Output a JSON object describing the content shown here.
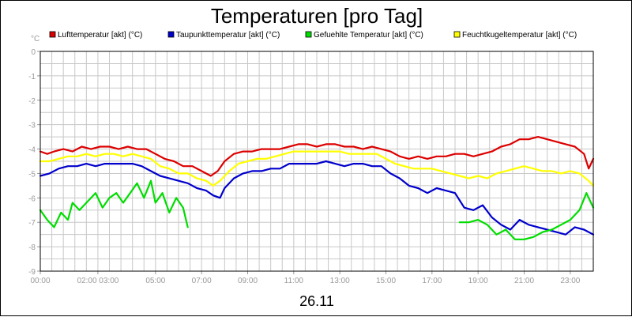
{
  "chart_data": {
    "type": "line",
    "title": "Temperaturen [pro Tag]",
    "ylabel": "°C",
    "date_label": "26.11",
    "xlim": [
      0,
      24
    ],
    "ylim": [
      -9,
      0
    ],
    "yticks": [
      "0",
      "-1",
      "-2",
      "-3",
      "-4",
      "-5",
      "-6",
      "-7",
      "-8",
      "-9"
    ],
    "xticks": [
      {
        "x": 0,
        "label": "00:00"
      },
      {
        "x": 2.5,
        "label": "02:00 03:00"
      },
      {
        "x": 5,
        "label": "05:00"
      },
      {
        "x": 7,
        "label": "07:00"
      },
      {
        "x": 9,
        "label": "09:00"
      },
      {
        "x": 11,
        "label": "11:00"
      },
      {
        "x": 13,
        "label": "13:00"
      },
      {
        "x": 15,
        "label": "15:00"
      },
      {
        "x": 17,
        "label": "17:00"
      },
      {
        "x": 19,
        "label": "19:00"
      },
      {
        "x": 21,
        "label": "21:00"
      },
      {
        "x": 23,
        "label": "23:00"
      }
    ],
    "grid": true,
    "legend_position": "top",
    "series": [
      {
        "name": "Lufttemperatur [akt] (°C)",
        "color": "#dd0000",
        "segments": [
          [
            [
              0,
              -4.1
            ],
            [
              0.3,
              -4.2
            ],
            [
              0.6,
              -4.1
            ],
            [
              1,
              -4.0
            ],
            [
              1.4,
              -4.1
            ],
            [
              1.8,
              -3.9
            ],
            [
              2.2,
              -4.0
            ],
            [
              2.6,
              -3.9
            ],
            [
              3,
              -3.9
            ],
            [
              3.4,
              -4.0
            ],
            [
              3.8,
              -3.9
            ],
            [
              4.2,
              -4.0
            ],
            [
              4.6,
              -4.0
            ],
            [
              5,
              -4.2
            ],
            [
              5.4,
              -4.4
            ],
            [
              5.8,
              -4.5
            ],
            [
              6.2,
              -4.7
            ],
            [
              6.6,
              -4.7
            ],
            [
              7,
              -4.9
            ],
            [
              7.4,
              -5.1
            ],
            [
              7.7,
              -4.9
            ],
            [
              8,
              -4.5
            ],
            [
              8.4,
              -4.2
            ],
            [
              8.8,
              -4.1
            ],
            [
              9.2,
              -4.1
            ],
            [
              9.6,
              -4.0
            ],
            [
              10,
              -4.0
            ],
            [
              10.4,
              -4.0
            ],
            [
              10.8,
              -3.9
            ],
            [
              11.2,
              -3.8
            ],
            [
              11.6,
              -3.8
            ],
            [
              12,
              -3.9
            ],
            [
              12.4,
              -3.8
            ],
            [
              12.8,
              -3.8
            ],
            [
              13.2,
              -3.9
            ],
            [
              13.6,
              -3.9
            ],
            [
              14,
              -4.0
            ],
            [
              14.4,
              -3.9
            ],
            [
              14.8,
              -4.0
            ],
            [
              15.2,
              -4.1
            ],
            [
              15.6,
              -4.3
            ],
            [
              16,
              -4.4
            ],
            [
              16.4,
              -4.3
            ],
            [
              16.8,
              -4.4
            ],
            [
              17.2,
              -4.3
            ],
            [
              17.6,
              -4.3
            ],
            [
              18,
              -4.2
            ],
            [
              18.4,
              -4.2
            ],
            [
              18.8,
              -4.3
            ],
            [
              19.2,
              -4.2
            ],
            [
              19.6,
              -4.1
            ],
            [
              20,
              -3.9
            ],
            [
              20.4,
              -3.8
            ],
            [
              20.8,
              -3.6
            ],
            [
              21.2,
              -3.6
            ],
            [
              21.6,
              -3.5
            ],
            [
              22,
              -3.6
            ],
            [
              22.4,
              -3.7
            ],
            [
              22.8,
              -3.8
            ],
            [
              23.2,
              -3.9
            ],
            [
              23.6,
              -4.2
            ],
            [
              23.8,
              -4.8
            ],
            [
              24,
              -4.4
            ]
          ]
        ]
      },
      {
        "name": "Taupunkttemperatur [akt] (°C)",
        "color": "#0000cc",
        "segments": [
          [
            [
              0,
              -5.1
            ],
            [
              0.4,
              -5.0
            ],
            [
              0.8,
              -4.8
            ],
            [
              1.2,
              -4.7
            ],
            [
              1.6,
              -4.7
            ],
            [
              2,
              -4.6
            ],
            [
              2.4,
              -4.7
            ],
            [
              2.8,
              -4.6
            ],
            [
              3.2,
              -4.6
            ],
            [
              3.6,
              -4.6
            ],
            [
              4,
              -4.6
            ],
            [
              4.4,
              -4.7
            ],
            [
              4.8,
              -4.9
            ],
            [
              5.2,
              -5.1
            ],
            [
              5.6,
              -5.2
            ],
            [
              6,
              -5.3
            ],
            [
              6.4,
              -5.4
            ],
            [
              6.8,
              -5.6
            ],
            [
              7.2,
              -5.7
            ],
            [
              7.5,
              -5.9
            ],
            [
              7.8,
              -6.0
            ],
            [
              8,
              -5.6
            ],
            [
              8.4,
              -5.2
            ],
            [
              8.8,
              -5.0
            ],
            [
              9.2,
              -4.9
            ],
            [
              9.6,
              -4.9
            ],
            [
              10,
              -4.8
            ],
            [
              10.4,
              -4.8
            ],
            [
              10.8,
              -4.6
            ],
            [
              11.2,
              -4.6
            ],
            [
              11.6,
              -4.6
            ],
            [
              12,
              -4.6
            ],
            [
              12.4,
              -4.5
            ],
            [
              12.8,
              -4.6
            ],
            [
              13.2,
              -4.7
            ],
            [
              13.6,
              -4.6
            ],
            [
              14,
              -4.6
            ],
            [
              14.4,
              -4.7
            ],
            [
              14.8,
              -4.7
            ],
            [
              15.2,
              -5.0
            ],
            [
              15.6,
              -5.2
            ],
            [
              16,
              -5.5
            ],
            [
              16.4,
              -5.6
            ],
            [
              16.8,
              -5.8
            ],
            [
              17.2,
              -5.6
            ],
            [
              17.6,
              -5.7
            ],
            [
              18,
              -5.8
            ],
            [
              18.4,
              -6.4
            ],
            [
              18.8,
              -6.5
            ],
            [
              19.2,
              -6.3
            ],
            [
              19.6,
              -6.8
            ],
            [
              20,
              -7.1
            ],
            [
              20.4,
              -7.3
            ],
            [
              20.8,
              -6.9
            ],
            [
              21.2,
              -7.1
            ],
            [
              21.6,
              -7.2
            ],
            [
              22,
              -7.3
            ],
            [
              22.4,
              -7.4
            ],
            [
              22.8,
              -7.5
            ],
            [
              23.2,
              -7.2
            ],
            [
              23.6,
              -7.3
            ],
            [
              24,
              -7.5
            ]
          ]
        ]
      },
      {
        "name": "Gefuehlte Temperatur [akt] (°C)",
        "color": "#00dd00",
        "segments": [
          [
            [
              0,
              -6.5
            ],
            [
              0.3,
              -6.9
            ],
            [
              0.6,
              -7.2
            ],
            [
              0.9,
              -6.6
            ],
            [
              1.2,
              -6.9
            ],
            [
              1.4,
              -6.2
            ],
            [
              1.7,
              -6.5
            ],
            [
              2,
              -6.2
            ],
            [
              2.4,
              -5.8
            ],
            [
              2.7,
              -6.4
            ],
            [
              3,
              -6.0
            ],
            [
              3.3,
              -5.8
            ],
            [
              3.6,
              -6.2
            ],
            [
              3.9,
              -5.8
            ],
            [
              4.2,
              -5.4
            ],
            [
              4.5,
              -6.0
            ],
            [
              4.8,
              -5.3
            ],
            [
              5,
              -6.2
            ],
            [
              5.3,
              -5.8
            ],
            [
              5.6,
              -6.6
            ],
            [
              5.9,
              -6.0
            ],
            [
              6.2,
              -6.4
            ],
            [
              6.4,
              -7.2
            ]
          ],
          [
            [
              18.2,
              -7.0
            ],
            [
              18.6,
              -7.0
            ],
            [
              19,
              -6.9
            ],
            [
              19.4,
              -7.1
            ],
            [
              19.8,
              -7.5
            ],
            [
              20.2,
              -7.3
            ],
            [
              20.6,
              -7.7
            ],
            [
              21,
              -7.7
            ],
            [
              21.4,
              -7.6
            ],
            [
              21.8,
              -7.4
            ],
            [
              22.2,
              -7.3
            ],
            [
              22.6,
              -7.1
            ],
            [
              23,
              -6.9
            ],
            [
              23.4,
              -6.5
            ],
            [
              23.7,
              -5.8
            ],
            [
              24,
              -6.4
            ]
          ]
        ]
      },
      {
        "name": "Feuchtkugeltemperatur [akt] (°C)",
        "color": "#ffff00",
        "segments": [
          [
            [
              0,
              -4.5
            ],
            [
              0.4,
              -4.5
            ],
            [
              0.8,
              -4.4
            ],
            [
              1.2,
              -4.3
            ],
            [
              1.6,
              -4.3
            ],
            [
              2,
              -4.2
            ],
            [
              2.4,
              -4.3
            ],
            [
              2.8,
              -4.2
            ],
            [
              3.2,
              -4.2
            ],
            [
              3.6,
              -4.3
            ],
            [
              4,
              -4.2
            ],
            [
              4.4,
              -4.3
            ],
            [
              4.8,
              -4.4
            ],
            [
              5.2,
              -4.7
            ],
            [
              5.6,
              -4.8
            ],
            [
              6,
              -5.0
            ],
            [
              6.4,
              -5.0
            ],
            [
              6.8,
              -5.2
            ],
            [
              7.2,
              -5.3
            ],
            [
              7.5,
              -5.5
            ],
            [
              7.8,
              -5.3
            ],
            [
              8.2,
              -4.9
            ],
            [
              8.6,
              -4.6
            ],
            [
              9,
              -4.5
            ],
            [
              9.4,
              -4.4
            ],
            [
              9.8,
              -4.4
            ],
            [
              10.2,
              -4.3
            ],
            [
              10.6,
              -4.2
            ],
            [
              11,
              -4.1
            ],
            [
              11.4,
              -4.1
            ],
            [
              11.8,
              -4.1
            ],
            [
              12.2,
              -4.1
            ],
            [
              12.6,
              -4.1
            ],
            [
              13,
              -4.1
            ],
            [
              13.4,
              -4.2
            ],
            [
              13.8,
              -4.2
            ],
            [
              14.2,
              -4.2
            ],
            [
              14.6,
              -4.2
            ],
            [
              15,
              -4.4
            ],
            [
              15.4,
              -4.6
            ],
            [
              15.8,
              -4.7
            ],
            [
              16.2,
              -4.8
            ],
            [
              16.6,
              -4.8
            ],
            [
              17,
              -4.8
            ],
            [
              17.4,
              -4.9
            ],
            [
              17.8,
              -5.0
            ],
            [
              18.2,
              -5.1
            ],
            [
              18.6,
              -5.2
            ],
            [
              19,
              -5.1
            ],
            [
              19.4,
              -5.2
            ],
            [
              19.8,
              -5.0
            ],
            [
              20.2,
              -4.9
            ],
            [
              20.6,
              -4.8
            ],
            [
              21,
              -4.7
            ],
            [
              21.4,
              -4.8
            ],
            [
              21.8,
              -4.9
            ],
            [
              22.2,
              -4.9
            ],
            [
              22.6,
              -5.0
            ],
            [
              23,
              -4.9
            ],
            [
              23.4,
              -5.0
            ],
            [
              23.8,
              -5.3
            ],
            [
              24,
              -5.5
            ]
          ]
        ]
      }
    ]
  }
}
